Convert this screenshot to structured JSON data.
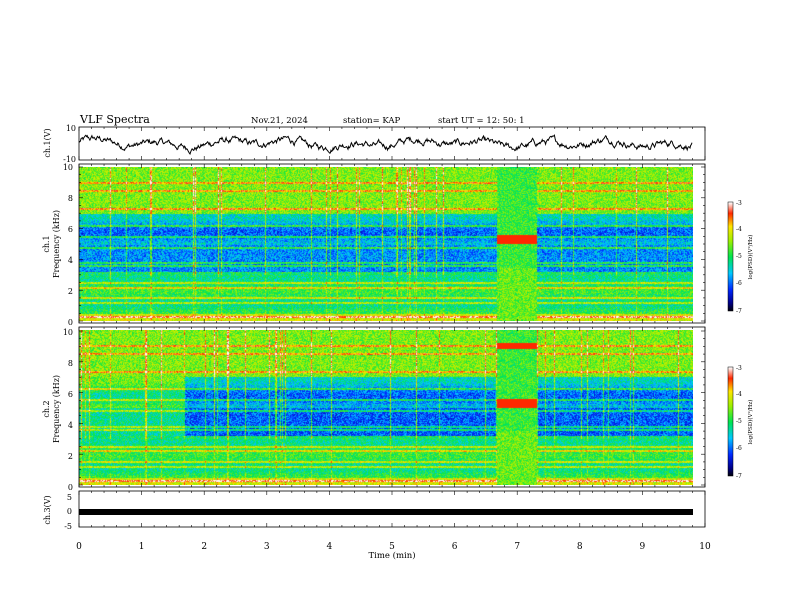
{
  "header": {
    "title": "VLF Spectra",
    "date": "Nov.21, 2024",
    "station": "station= KAP",
    "start": "start  UT  =   12: 50: 1"
  },
  "chart_data": [
    {
      "type": "line",
      "name": "ch1-waveform",
      "ylabel": "ch.1(V)",
      "ylim": [
        -10,
        10
      ],
      "yticks": [
        "10",
        "-10"
      ],
      "xlim": [
        0,
        10
      ],
      "signal": "noisy oscillation mostly between about -5 and 8 V"
    },
    {
      "type": "heatmap",
      "name": "ch1-spectrogram",
      "ylabel_channel": "ch.1",
      "ylabel": "Frequency  (kHz)",
      "ylim": [
        0,
        10
      ],
      "yticks": [
        "0",
        "2",
        "4",
        "6",
        "8",
        "10"
      ],
      "xlim": [
        0,
        10
      ],
      "colorbar": {
        "label": "log(PSD)(V²/Hz)",
        "range": [
          -7,
          -3
        ],
        "ticks": [
          "-3",
          "-4",
          "-5",
          "-6",
          "-7"
        ]
      }
    },
    {
      "type": "heatmap",
      "name": "ch2-spectrogram",
      "ylabel_channel": "ch.2",
      "ylabel": "Frequency  (kHz)",
      "ylim": [
        0,
        10
      ],
      "yticks": [
        "0",
        "2",
        "4",
        "6",
        "8",
        "10"
      ],
      "xlim": [
        0,
        10
      ],
      "colorbar": {
        "label": "log(PSD)(V²/Hz)",
        "range": [
          -7,
          -3
        ],
        "ticks": [
          "-3",
          "-4",
          "-5",
          "-6",
          "-7"
        ]
      }
    },
    {
      "type": "line",
      "name": "ch3-waveform",
      "ylabel": "ch.3(V)",
      "ylim": [
        -5,
        5
      ],
      "yticks": [
        "5",
        "0",
        "-5"
      ],
      "xlim": [
        0,
        10
      ],
      "xlabel": "Time  (min)",
      "xticks": [
        "0",
        "1",
        "2",
        "3",
        "4",
        "5",
        "6",
        "7",
        "8",
        "9",
        "10"
      ],
      "signal": "flat thick band near -0.5 V"
    }
  ]
}
